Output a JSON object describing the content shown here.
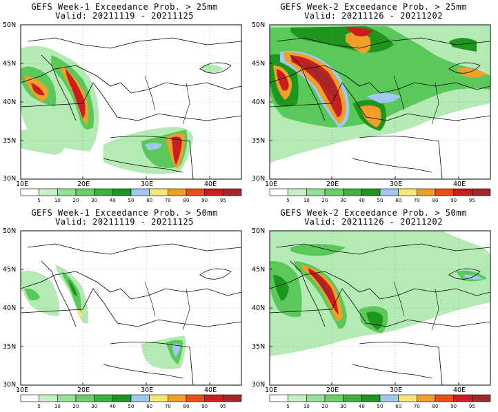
{
  "panels": [
    {
      "title_line1": "GEFS Week-1 Exceedance Prob. > 25mm",
      "title_line2": "Valid: 20211119 - 20211125"
    },
    {
      "title_line1": "GEFS Week-2 Exceedance Prob. > 25mm",
      "title_line2": "Valid: 20211126 - 20211202"
    },
    {
      "title_line1": "GEFS Week-1 Exceedance Prob. > 50mm",
      "title_line2": "Valid: 20211119 - 20211125"
    },
    {
      "title_line1": "GEFS Week-2 Exceedance Prob. > 50mm",
      "title_line2": "Valid: 20211126 - 20211202"
    }
  ],
  "axes": {
    "lat_labels": [
      "50N",
      "45N",
      "40N",
      "35N",
      "30N"
    ],
    "lon_labels": [
      "10E",
      "20E",
      "30E",
      "40E"
    ]
  },
  "colorbar": {
    "labels": [
      "5",
      "10",
      "20",
      "30",
      "40",
      "50",
      "60",
      "70",
      "80",
      "90",
      "95"
    ],
    "colors": [
      "#ffffff",
      "#c8f0c8",
      "#98e098",
      "#6ad06a",
      "#3cb43c",
      "#1e961e",
      "#a0c8f0",
      "#fae678",
      "#f0a028",
      "#e65014",
      "#c81e1e",
      "#a02828"
    ]
  },
  "colors": {
    "light_green": "#b4ebb4",
    "green": "#5ac85a",
    "dark_green": "#1e961e",
    "blue": "#a0c8f0",
    "yellow": "#fae678",
    "orange": "#f0a028",
    "red": "#d23c1e",
    "dark_red": "#a02828"
  }
}
